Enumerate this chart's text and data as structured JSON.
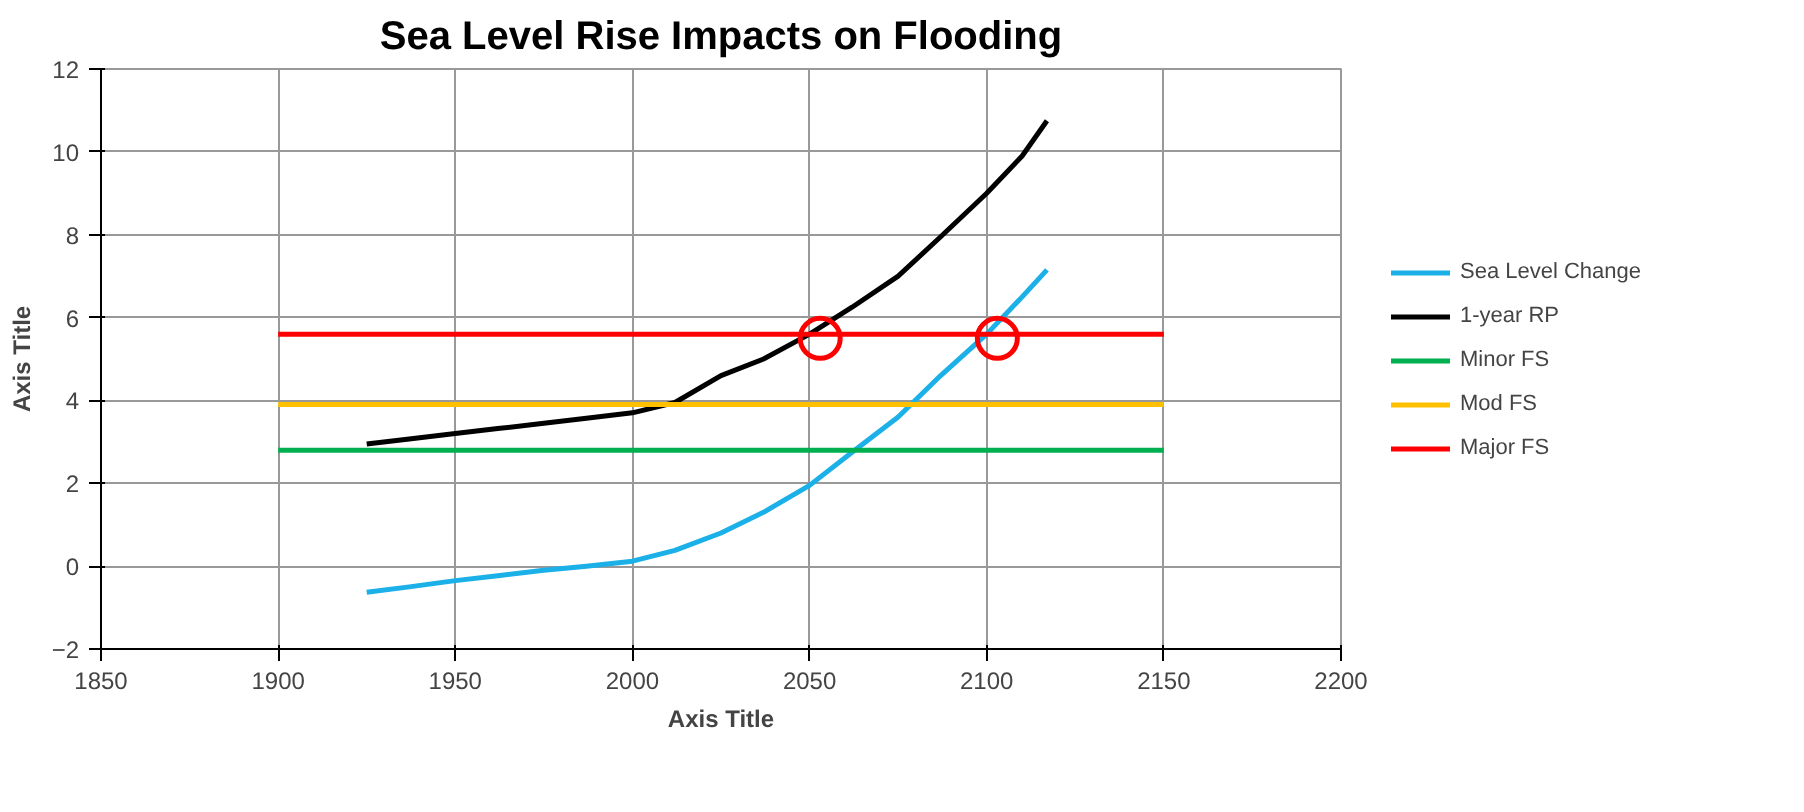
{
  "chart_data": {
    "type": "line",
    "title": "Sea Level Rise Impacts on Flooding",
    "xlabel": "Axis Title",
    "ylabel": "Axis Title",
    "xlim": [
      1850,
      2200
    ],
    "xticks": [
      1850,
      1900,
      1950,
      2000,
      2050,
      2100,
      2150,
      2200
    ],
    "ylim": [
      -2,
      12
    ],
    "yticks": [
      -2,
      0,
      2,
      4,
      6,
      8,
      10,
      12
    ],
    "grid": true,
    "legend": "right",
    "marker": "none",
    "line_style": "solid",
    "series": [
      {
        "name": "Sea Level Change",
        "color": "#1cb0e8",
        "x": [
          1925,
          1937,
          1950,
          1962,
          1975,
          1987,
          2000,
          2012,
          2025,
          2037,
          2050,
          2062,
          2075,
          2087,
          2100,
          2110,
          2117
        ],
        "values": [
          -0.63,
          -0.5,
          -0.35,
          -0.23,
          -0.1,
          0.0,
          0.12,
          0.38,
          0.8,
          1.3,
          1.95,
          2.75,
          3.6,
          4.6,
          5.6,
          6.5,
          7.15
        ]
      },
      {
        "name": "1-year RP",
        "color": "#000000",
        "x": [
          1925,
          1937,
          1950,
          1962,
          1975,
          1987,
          2000,
          2012,
          2025,
          2037,
          2050,
          2062,
          2075,
          2087,
          2100,
          2110,
          2117
        ],
        "values": [
          2.95,
          3.07,
          3.2,
          3.32,
          3.45,
          3.57,
          3.7,
          3.95,
          4.6,
          5.0,
          5.6,
          6.25,
          7.0,
          7.95,
          9.0,
          9.9,
          10.75
        ]
      },
      {
        "name": "Minor FS",
        "color": "#00b050",
        "x": [
          1900,
          2150
        ],
        "values": [
          2.8,
          2.8
        ]
      },
      {
        "name": "Mod FS",
        "color": "#ffc000",
        "x": [
          1900,
          2150
        ],
        "values": [
          3.9,
          3.9
        ]
      },
      {
        "name": "Major FS",
        "color": "#ff0000",
        "x": [
          1900,
          2150
        ],
        "values": [
          5.6,
          5.6
        ]
      },
      {
        "type": "scatter",
        "marker": "circle",
        "color": "#ff0000",
        "x": [
          2053,
          2103
        ],
        "values": [
          5.5,
          5.5
        ]
      }
    ]
  }
}
